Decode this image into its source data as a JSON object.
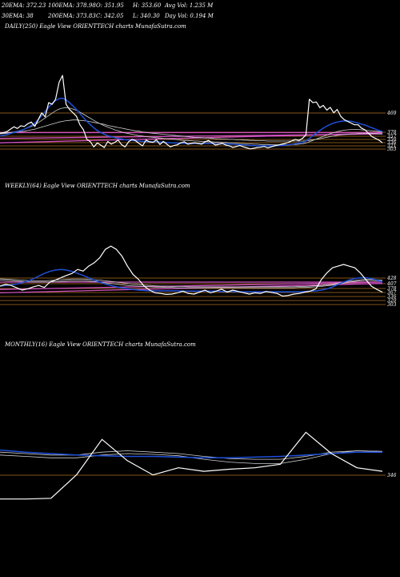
{
  "header": {
    "row1": [
      "20EMA: 372.23",
      "100EMA: 378.98",
      "O: 351.95",
      "H: 353.60",
      "Avg Vol: 1.235 M"
    ],
    "row2": [
      "30EMA: 38",
      "200EMA: 373.83",
      "C: 342.05",
      "L: 340.30",
      "Day Vol: 0.194 M"
    ]
  },
  "colors": {
    "background": "#000000",
    "price": "#ffffff",
    "ema_short": "#1e4fd8",
    "ema_long": "#cfcfcf",
    "level_line": "#b07020",
    "pink_line": "#d050c0",
    "label_text": "#ffffff"
  },
  "chart_data": [
    {
      "type": "line",
      "title": "DAILY(250) Eagle   View  ORIENTTECH charts MunafaSutra.com",
      "level_labels": [
        "469",
        "378",
        "357",
        "350",
        "336",
        "321",
        "303"
      ],
      "series": [
        {
          "name": "",
          "values": [
            370,
            372,
            375,
            382,
            389,
            384,
            392,
            390,
            398,
            403,
            390,
            410,
            430,
            418,
            460,
            455,
            470,
            520,
            540,
            455,
            440,
            430,
            420,
            395,
            380,
            352,
            345,
            330,
            342,
            335,
            328,
            346,
            338,
            343,
            350,
            336,
            330,
            345,
            352,
            348,
            340,
            333,
            350,
            345,
            343,
            351,
            337,
            346,
            338,
            330,
            334,
            336,
            342,
            345,
            338,
            340,
            342,
            340,
            338,
            345,
            349,
            342,
            335,
            338,
            340,
            335,
            333,
            328,
            331,
            334,
            330,
            327,
            324,
            326,
            328,
            329,
            331,
            327,
            330,
            333,
            335,
            338,
            340,
            343,
            348,
            352,
            349,
            355,
            365,
            470,
            460,
            462,
            445,
            452,
            438,
            446,
            430,
            440,
            420,
            410,
            405,
            400,
            395,
            395,
            385,
            380,
            370,
            360,
            355,
            350,
            342
          ]
        },
        {
          "name": "",
          "values": [
            362,
            364,
            366,
            369,
            372,
            375,
            378,
            382,
            387,
            393,
            400,
            410,
            422,
            434,
            446,
            458,
            466,
            472,
            473,
            468,
            460,
            450,
            440,
            428,
            416,
            405,
            395,
            386,
            378,
            372,
            367,
            363,
            360,
            357,
            355,
            353,
            351,
            350,
            349,
            348,
            347,
            346,
            346,
            345,
            345,
            345,
            344,
            344,
            343,
            342,
            342,
            341,
            341,
            340,
            340,
            340,
            340,
            340,
            340,
            340,
            340,
            340,
            339,
            339,
            339,
            339,
            338,
            338,
            337,
            336,
            336,
            335,
            334,
            334,
            333,
            333,
            333,
            333,
            333,
            333,
            334,
            334,
            335,
            336,
            337,
            339,
            341,
            343,
            347,
            355,
            363,
            371,
            378,
            385,
            391,
            396,
            400,
            403,
            405,
            406,
            406,
            405,
            403,
            400,
            397,
            394,
            390,
            386,
            382,
            378,
            375
          ]
        },
        {
          "name": "",
          "values": [
            368,
            369,
            370,
            372,
            374,
            376,
            379,
            382,
            386,
            390,
            395,
            401,
            408,
            415,
            422,
            429,
            436,
            441,
            444,
            445,
            444,
            441,
            437,
            432,
            426,
            420,
            414,
            408,
            402,
            397,
            392,
            388,
            384,
            380,
            377,
            374,
            371,
            369,
            367,
            365,
            363,
            362,
            360,
            359,
            358,
            357,
            356,
            355,
            354,
            353,
            352,
            351,
            350,
            349,
            349,
            348,
            347,
            347,
            346,
            346,
            345,
            345,
            344,
            344,
            343,
            343,
            342,
            342,
            341,
            340,
            340,
            339,
            339,
            338,
            338,
            337,
            337,
            337,
            336,
            336,
            336,
            336,
            336,
            336,
            337,
            337,
            338,
            339,
            341,
            345,
            349,
            353,
            357,
            361,
            365,
            369,
            372,
            375,
            377,
            379,
            380,
            381,
            381,
            381,
            380,
            379,
            378,
            377,
            376,
            375,
            373
          ]
        },
        {
          "name": "",
          "values": [
            370,
            371,
            371,
            372,
            373,
            374,
            375,
            376,
            378,
            380,
            382,
            385,
            388,
            391,
            394,
            397,
            400,
            403,
            405,
            407,
            408,
            409,
            409,
            408,
            407,
            406,
            404,
            402,
            400,
            398,
            396,
            393,
            391,
            389,
            387,
            385,
            383,
            381,
            379,
            377,
            376,
            374,
            373,
            371,
            370,
            369,
            368,
            367,
            366,
            365,
            364,
            363,
            362,
            361,
            360,
            359,
            358,
            358,
            357,
            356,
            356,
            355,
            354,
            354,
            353,
            353,
            352,
            352,
            351,
            351,
            350,
            350,
            349,
            349,
            348,
            348,
            348,
            347,
            347,
            347,
            347,
            347,
            347,
            347,
            347,
            347,
            347,
            347,
            348,
            349,
            351,
            352,
            354,
            356,
            358,
            360,
            362,
            364,
            365,
            366,
            367,
            368,
            368,
            369,
            369,
            369,
            369,
            369,
            369,
            368,
            368
          ]
        }
      ],
      "straight_lines": [
        {
          "name": "",
          "from": 372,
          "to": 372
        },
        {
          "name": "",
          "from": 355,
          "to": 368
        },
        {
          "name": "",
          "from": 342,
          "to": 370
        }
      ]
    },
    {
      "type": "line",
      "title": "WEEKLY(64) Eagle   View  ORIENTTECH charts MunafaSutra.com",
      "level_labels": [
        "428",
        "407",
        "378",
        "367",
        "336",
        "320",
        "303"
      ],
      "series": [
        {
          "name": "",
          "values": [
            360,
            365,
            362,
            355,
            348,
            352,
            358,
            362,
            356,
            372,
            378,
            385,
            392,
            398,
            410,
            405,
            420,
            430,
            445,
            470,
            480,
            470,
            450,
            420,
            395,
            380,
            360,
            348,
            340,
            338,
            335,
            336,
            340,
            345,
            338,
            336,
            342,
            348,
            340,
            345,
            351,
            342,
            348,
            344,
            340,
            336,
            340,
            338,
            344,
            341,
            338,
            330,
            332,
            336,
            338,
            342,
            345,
            352,
            380,
            400,
            415,
            420,
            425,
            420,
            415,
            400,
            380,
            360,
            350,
            342
          ]
        },
        {
          "name": "",
          "values": [
            360,
            362,
            364,
            366,
            370,
            375,
            382,
            390,
            398,
            404,
            408,
            410,
            408,
            404,
            398,
            392,
            385,
            378,
            372,
            366,
            362,
            358,
            355,
            352,
            350,
            348,
            347,
            346,
            346,
            346,
            346,
            346,
            346,
            345,
            345,
            345,
            345,
            345,
            345,
            345,
            344,
            344,
            344,
            343,
            343,
            343,
            343,
            343,
            343,
            343,
            343,
            343,
            343,
            343,
            343,
            344,
            345,
            346,
            348,
            352,
            358,
            365,
            372,
            378,
            383,
            385,
            385,
            383,
            378,
            372
          ]
        },
        {
          "name": "",
          "values": [
            378,
            377,
            376,
            375,
            374,
            373,
            372,
            372,
            372,
            372,
            373,
            374,
            375,
            376,
            376,
            376,
            375,
            374,
            372,
            370,
            368,
            366,
            364,
            362,
            361,
            360,
            359,
            358,
            357,
            357,
            356,
            356,
            355,
            355,
            355,
            355,
            355,
            355,
            355,
            355,
            355,
            355,
            355,
            355,
            355,
            355,
            355,
            355,
            355,
            355,
            355,
            355,
            355,
            355,
            356,
            356,
            357,
            358,
            359,
            361,
            363,
            366,
            369,
            372,
            374,
            376,
            377,
            377,
            376,
            375
          ]
        },
        {
          "name": "",
          "values": [
            382,
            381,
            380,
            379,
            378,
            377,
            376,
            376,
            376,
            377,
            378,
            379,
            380,
            381,
            381,
            381,
            380,
            379,
            378,
            376,
            374,
            372,
            370,
            368,
            366,
            365,
            363,
            362,
            361,
            360,
            360,
            359,
            359,
            359,
            358,
            358,
            358,
            358,
            358,
            358,
            358,
            358,
            358,
            358,
            358,
            358,
            358,
            358,
            358,
            358,
            358,
            358,
            358,
            358,
            359,
            359,
            360,
            361,
            362,
            364,
            366,
            369,
            372,
            375,
            377,
            379,
            380,
            380,
            379,
            378
          ]
        }
      ],
      "straight_lines": [
        {
          "name": "",
          "from": 372,
          "to": 372
        },
        {
          "name": "",
          "from": 350,
          "to": 372
        },
        {
          "name": "",
          "from": 340,
          "to": 368
        }
      ]
    },
    {
      "type": "line",
      "title": "MONTHLY(16) Eagle   View  ORIENTTECH charts MunafaSutra.com",
      "level_labels": [
        "346"
      ],
      "series": [
        {
          "name": "",
          "values": [
            306,
            306,
            307,
            340,
            390,
            360,
            340,
            350,
            345,
            348,
            350,
            355,
            400,
            370,
            350,
            345
          ]
        },
        {
          "name": "",
          "values": [
            375,
            372,
            370,
            368,
            367,
            366,
            366,
            365,
            364,
            364,
            365,
            366,
            368,
            370,
            372,
            372
          ]
        },
        {
          "name": "",
          "values": [
            372,
            370,
            368,
            368,
            372,
            374,
            372,
            370,
            366,
            363,
            362,
            362,
            366,
            372,
            374,
            373
          ]
        },
        {
          "name": "",
          "values": [
            368,
            366,
            364,
            364,
            368,
            370,
            369,
            367,
            362,
            358,
            356,
            356,
            362,
            370,
            374,
            373
          ]
        }
      ],
      "straight_lines": []
    }
  ]
}
